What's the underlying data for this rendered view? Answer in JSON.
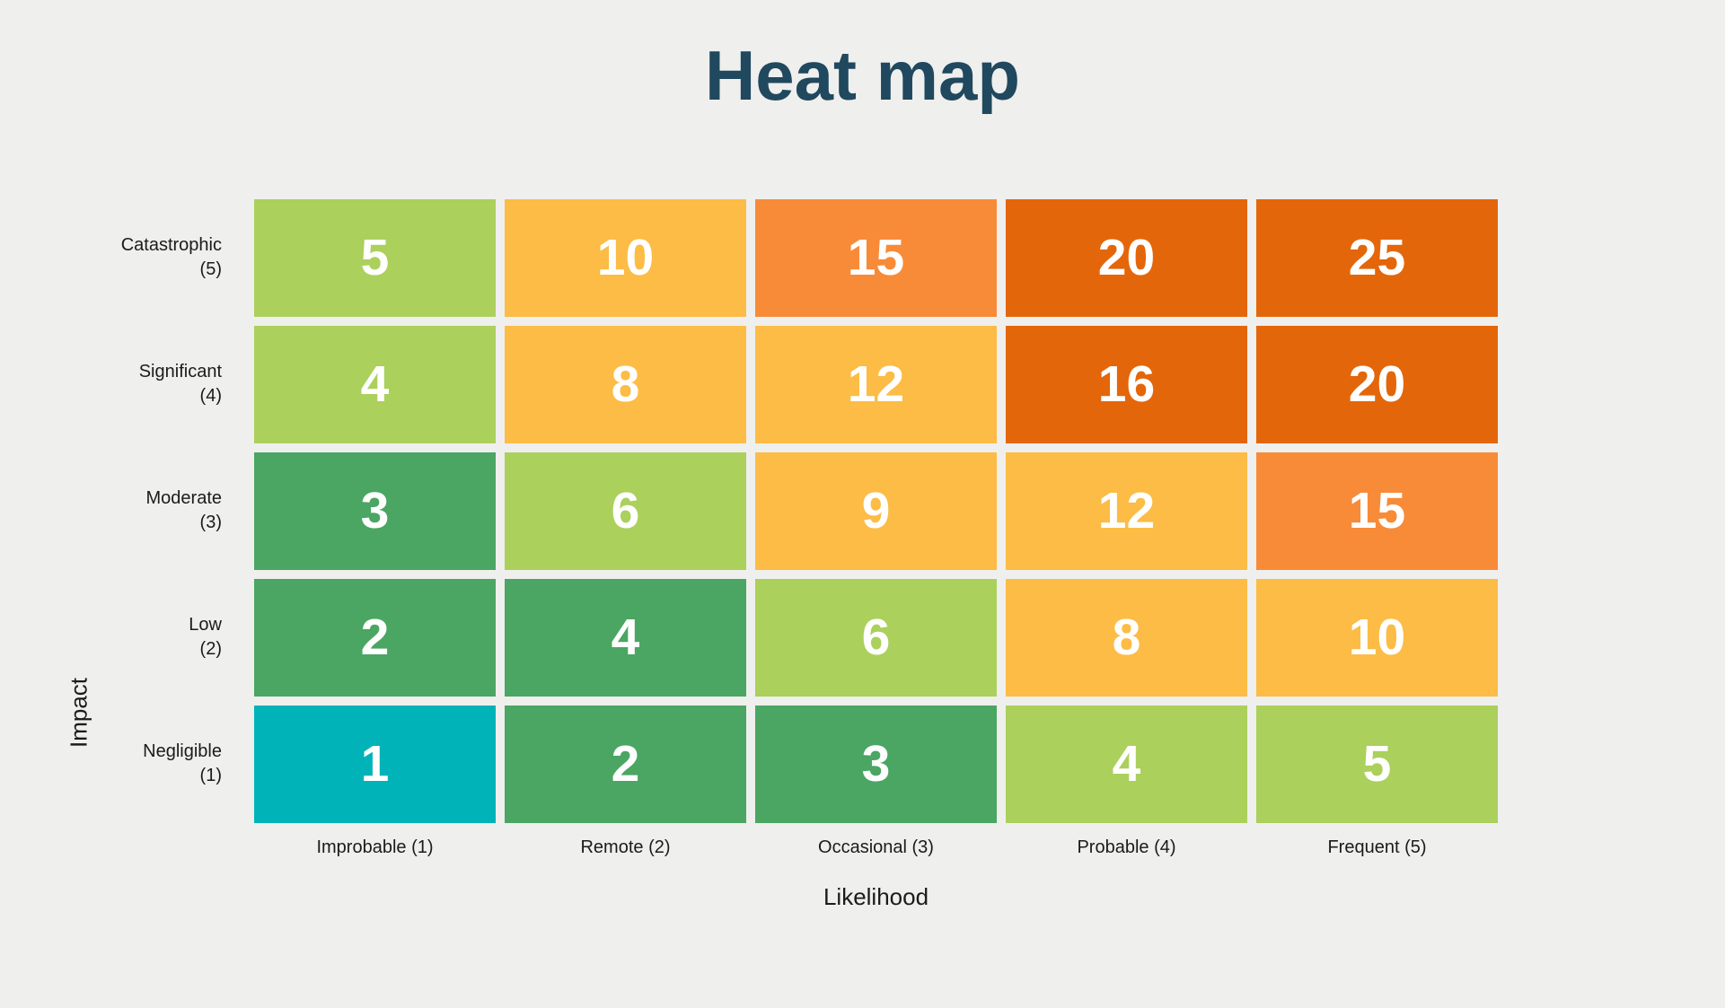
{
  "title": "Heat map",
  "colors": {
    "background": "#efefee",
    "title": "#20485e",
    "label": "#1b1b1b",
    "cell_text": "#ffffff",
    "teal": "#00b3b8",
    "green": "#4aa662",
    "lightGreen": "#abd05c",
    "yellow": "#fcbc45",
    "orange": "#f88b38",
    "darkOrange": "#e4660a"
  },
  "chart_data": {
    "type": "heatmap",
    "title": "Heat map",
    "xlabel": "Likelihood",
    "ylabel": "Impact",
    "x_categories": [
      "Improbable (1)",
      "Remote (2)",
      "Occasional (3)",
      "Probable (4)",
      "Frequent (5)"
    ],
    "y_categories": [
      "Catastrophic (5)",
      "Significant (4)",
      "Moderate (3)",
      "Low (2)",
      "Negligible (1)"
    ],
    "legend": "none",
    "grid": "off",
    "value_range": [
      1,
      25
    ],
    "rows": [
      {
        "impact": "Catastrophic",
        "level": "(5)",
        "values": [
          5,
          10,
          15,
          20,
          25
        ],
        "colors": [
          "lightGreen",
          "yellow",
          "orange",
          "darkOrange",
          "darkOrange"
        ]
      },
      {
        "impact": "Significant",
        "level": "(4)",
        "values": [
          4,
          8,
          12,
          16,
          20
        ],
        "colors": [
          "lightGreen",
          "yellow",
          "yellow",
          "darkOrange",
          "darkOrange"
        ]
      },
      {
        "impact": "Moderate",
        "level": "(3)",
        "values": [
          3,
          6,
          9,
          12,
          15
        ],
        "colors": [
          "green",
          "lightGreen",
          "yellow",
          "yellow",
          "orange"
        ]
      },
      {
        "impact": "Low",
        "level": "(2)",
        "values": [
          2,
          4,
          6,
          8,
          10
        ],
        "colors": [
          "green",
          "green",
          "lightGreen",
          "yellow",
          "yellow"
        ]
      },
      {
        "impact": "Negligible",
        "level": "(1)",
        "values": [
          1,
          2,
          3,
          4,
          5
        ],
        "colors": [
          "teal",
          "green",
          "green",
          "lightGreen",
          "lightGreen"
        ]
      }
    ]
  }
}
